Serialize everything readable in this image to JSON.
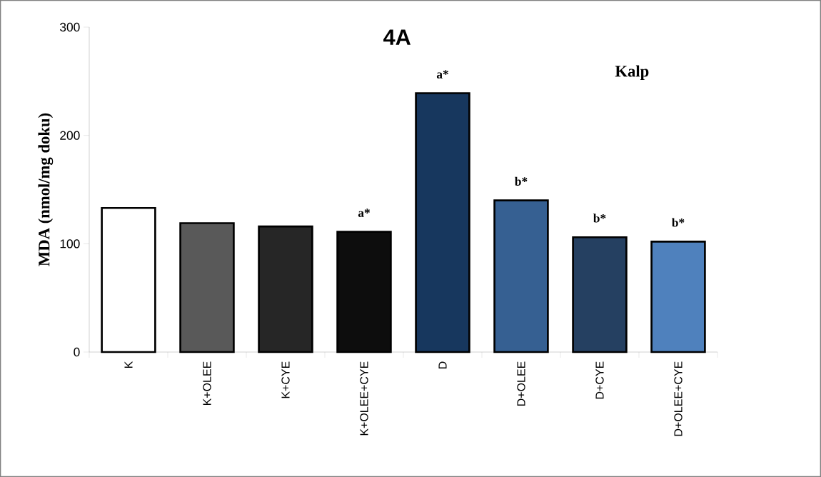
{
  "chart_data": {
    "type": "bar",
    "title": "4A",
    "subtitle": "Kalp",
    "ylabel": "MDA (nmol/mg doku)",
    "categories": [
      "K",
      "K+OLEE",
      "K+CYE",
      "K+OLEE+CYE",
      "D",
      "D+OLEE",
      "D+CYE",
      "D+OLEE+CYE"
    ],
    "values": [
      133,
      119,
      116,
      111,
      239,
      140,
      106,
      102
    ],
    "colors": [
      "#ffffff",
      "#595959",
      "#262626",
      "#0d0d0d",
      "#17375e",
      "#366092",
      "#254061",
      "#4f81bd"
    ],
    "ylim": [
      0,
      300
    ],
    "yticks": [
      0,
      100,
      200,
      300
    ],
    "grid": false,
    "annotations": [
      {
        "text": "a*",
        "x": "K+OLEE+CYE",
        "y": 111
      },
      {
        "text": "a*",
        "x": "D",
        "y": 239
      },
      {
        "text": "b*",
        "x": "D+OLEE",
        "y": 140
      },
      {
        "text": "b*",
        "x": "D+CYE",
        "y": 106
      },
      {
        "text": "b*",
        "x": "D+OLEE+CYE",
        "y": 102
      }
    ]
  }
}
